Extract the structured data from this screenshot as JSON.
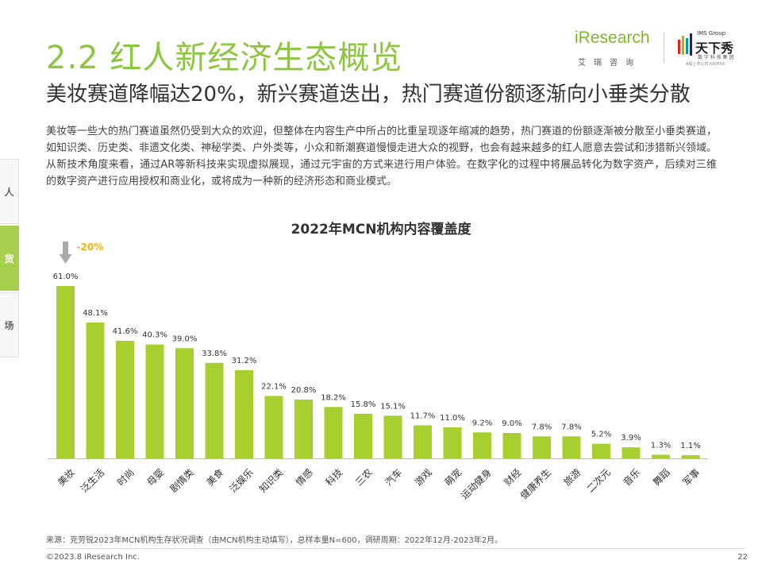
{
  "header": {
    "title": "2.2 红人新经济生态概览",
    "subtitle": "美妆赛道降幅达20%，新兴赛道迭出，热门赛道份额逐渐向小垂类分散"
  },
  "logos": {
    "iresearch": "iResearch",
    "iresearch_cn": "艾瑞咨询",
    "ims_group": "IMS Group",
    "txx": "天下秀",
    "txx_sub": "数 字 科 技 集 团",
    "txx_code": "A股上市公司 600556"
  },
  "paragraph": "美妆等一些大的热门赛道虽然仍受到大众的欢迎，但整体在内容生产中所占的比重呈现逐年缩减的趋势，热门赛道的份额逐渐被分散至小垂类赛道，如知识类、历史类、非遗文化类、神秘学类、户外类等，小众和新潮赛道慢慢走进大众的视野，也会有越来越多的红人愿意去尝试和涉猎新兴领域。从新技术角度来看，通过AR等新科技来实现虚拟展现，通过元宇宙的方式来进行用户体验。在数字化的过程中将展品转化为数字资产，后续对三维的数字资产进行应用授权和商业化，或将成为一种新的经济形态和商业模式。",
  "side_tabs": [
    {
      "label": "人",
      "active": false
    },
    {
      "label": "货",
      "active": true
    },
    {
      "label": "场",
      "active": false
    }
  ],
  "chart_data": {
    "type": "bar",
    "title": "2022年MCN机构内容覆盖度",
    "categories": [
      "美妆",
      "泛生活",
      "时尚",
      "母婴",
      "剧情类",
      "美食",
      "泛娱乐",
      "知识类",
      "情感",
      "科技",
      "三农",
      "汽车",
      "游戏",
      "萌宠",
      "运动健身",
      "财经",
      "健康养生",
      "旅游",
      "二次元",
      "音乐",
      "舞蹈",
      "军事"
    ],
    "values": [
      61.0,
      48.1,
      41.6,
      40.3,
      39.0,
      33.8,
      31.2,
      22.1,
      20.8,
      18.2,
      15.8,
      15.1,
      11.7,
      11.0,
      9.2,
      9.0,
      7.8,
      7.8,
      5.2,
      3.9,
      1.3,
      1.1
    ],
    "value_labels": [
      "61.0%",
      "48.1%",
      "41.6%",
      "40.3%",
      "39.0%",
      "33.8%",
      "31.2%",
      "22.1%",
      "20.8%",
      "18.2%",
      "15.8%",
      "15.1%",
      "11.7%",
      "11.0%",
      "9.2%",
      "9.0%",
      "7.8%",
      "7.8%",
      "5.2%",
      "3.9%",
      "1.3%",
      "1.1%"
    ],
    "ylim": [
      0,
      61
    ],
    "annotation": "-20%",
    "colors": {
      "bar": "#a6cf2f",
      "annotation": "#f2b705",
      "arrow": "#aaaaaa",
      "axis": "#bfbfbf"
    },
    "grid": false
  },
  "footer": {
    "source": "来源：克劳锐2023年MCN机构生存状况调查（由MCN机构主动填写），总样本量N=600，调研周期：2022年12月-2023年2月。",
    "copyright": "©2023.8 iResearch Inc.",
    "page": "22"
  }
}
